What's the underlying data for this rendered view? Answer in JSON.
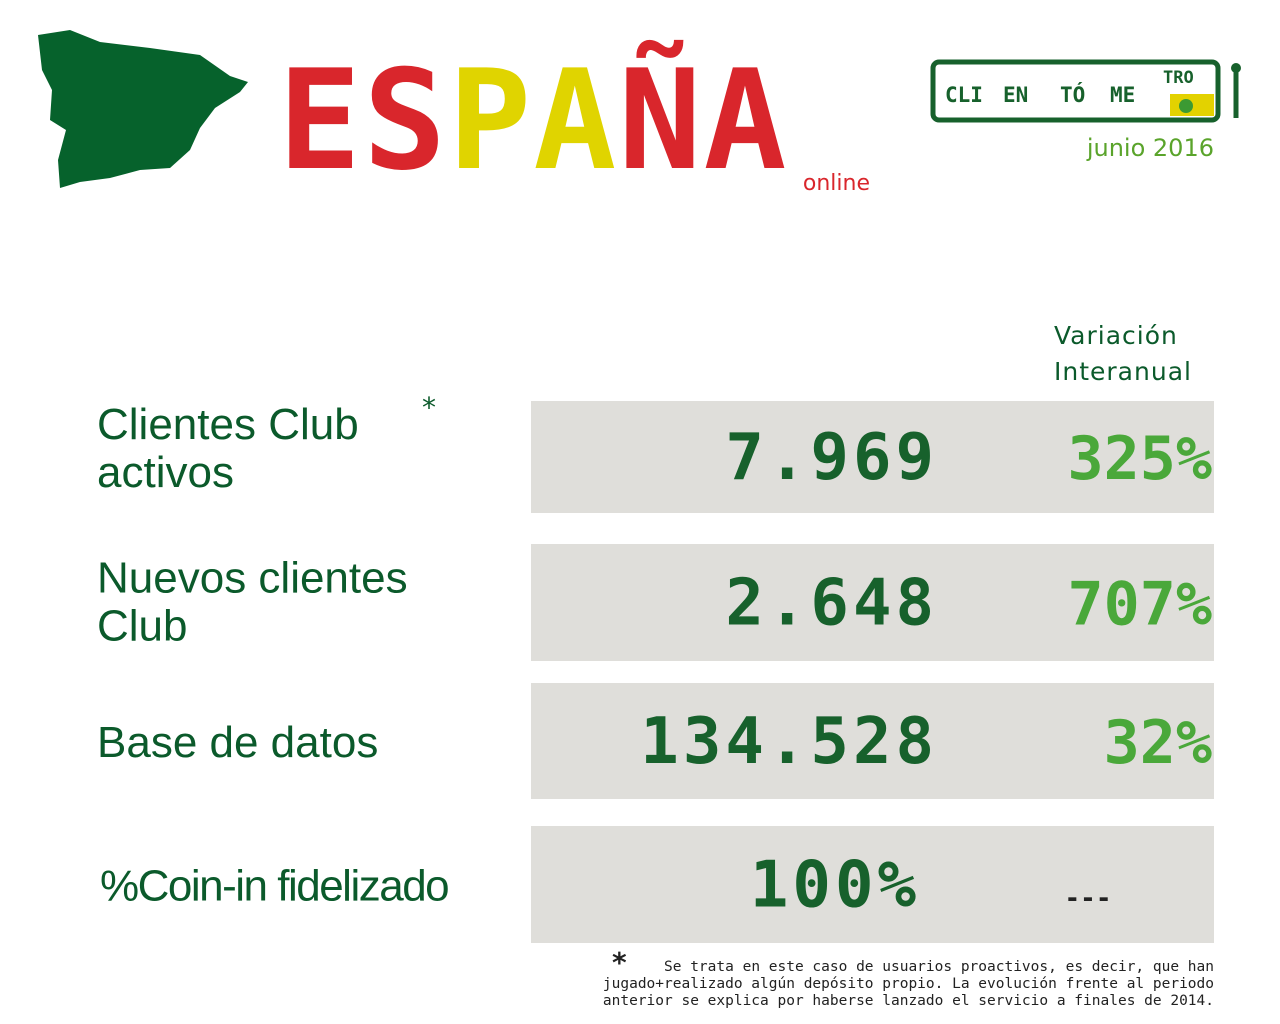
{
  "header": {
    "title": "ESPAÑA",
    "title_letter_colors": [
      "#d9262c",
      "#d9262c",
      "#e0d400",
      "#e0d400",
      "#d9262c",
      "#d9262c"
    ],
    "subtitle": "online",
    "logo": [
      "CLI",
      "EN",
      "TÓ",
      "ME",
      "TRO"
    ],
    "date": "junio 2016"
  },
  "table": {
    "column_header": [
      "Variación",
      "Interanual"
    ],
    "rows": [
      {
        "label": [
          "Clientes Club",
          "activos"
        ],
        "marker": "*",
        "value": "7.969",
        "variation": "325%"
      },
      {
        "label": [
          "Nuevos clientes",
          "Club"
        ],
        "value": "2.648",
        "variation": "707%"
      },
      {
        "label": [
          "Base de datos"
        ],
        "value": "134.528",
        "variation": "32%"
      },
      {
        "label": [
          "%Coin-in fidelizado"
        ],
        "value": "100%",
        "variation": "---"
      }
    ]
  },
  "footnote": {
    "marker": "*",
    "lines": [
      "Se trata en este caso de usuarios proactivos, es decir, que han",
      "jugado+realizado algún depósito propio. La evolución frente al periodo",
      "anterior se explica por haberse lanzado el servicio a finales de 2014."
    ]
  }
}
